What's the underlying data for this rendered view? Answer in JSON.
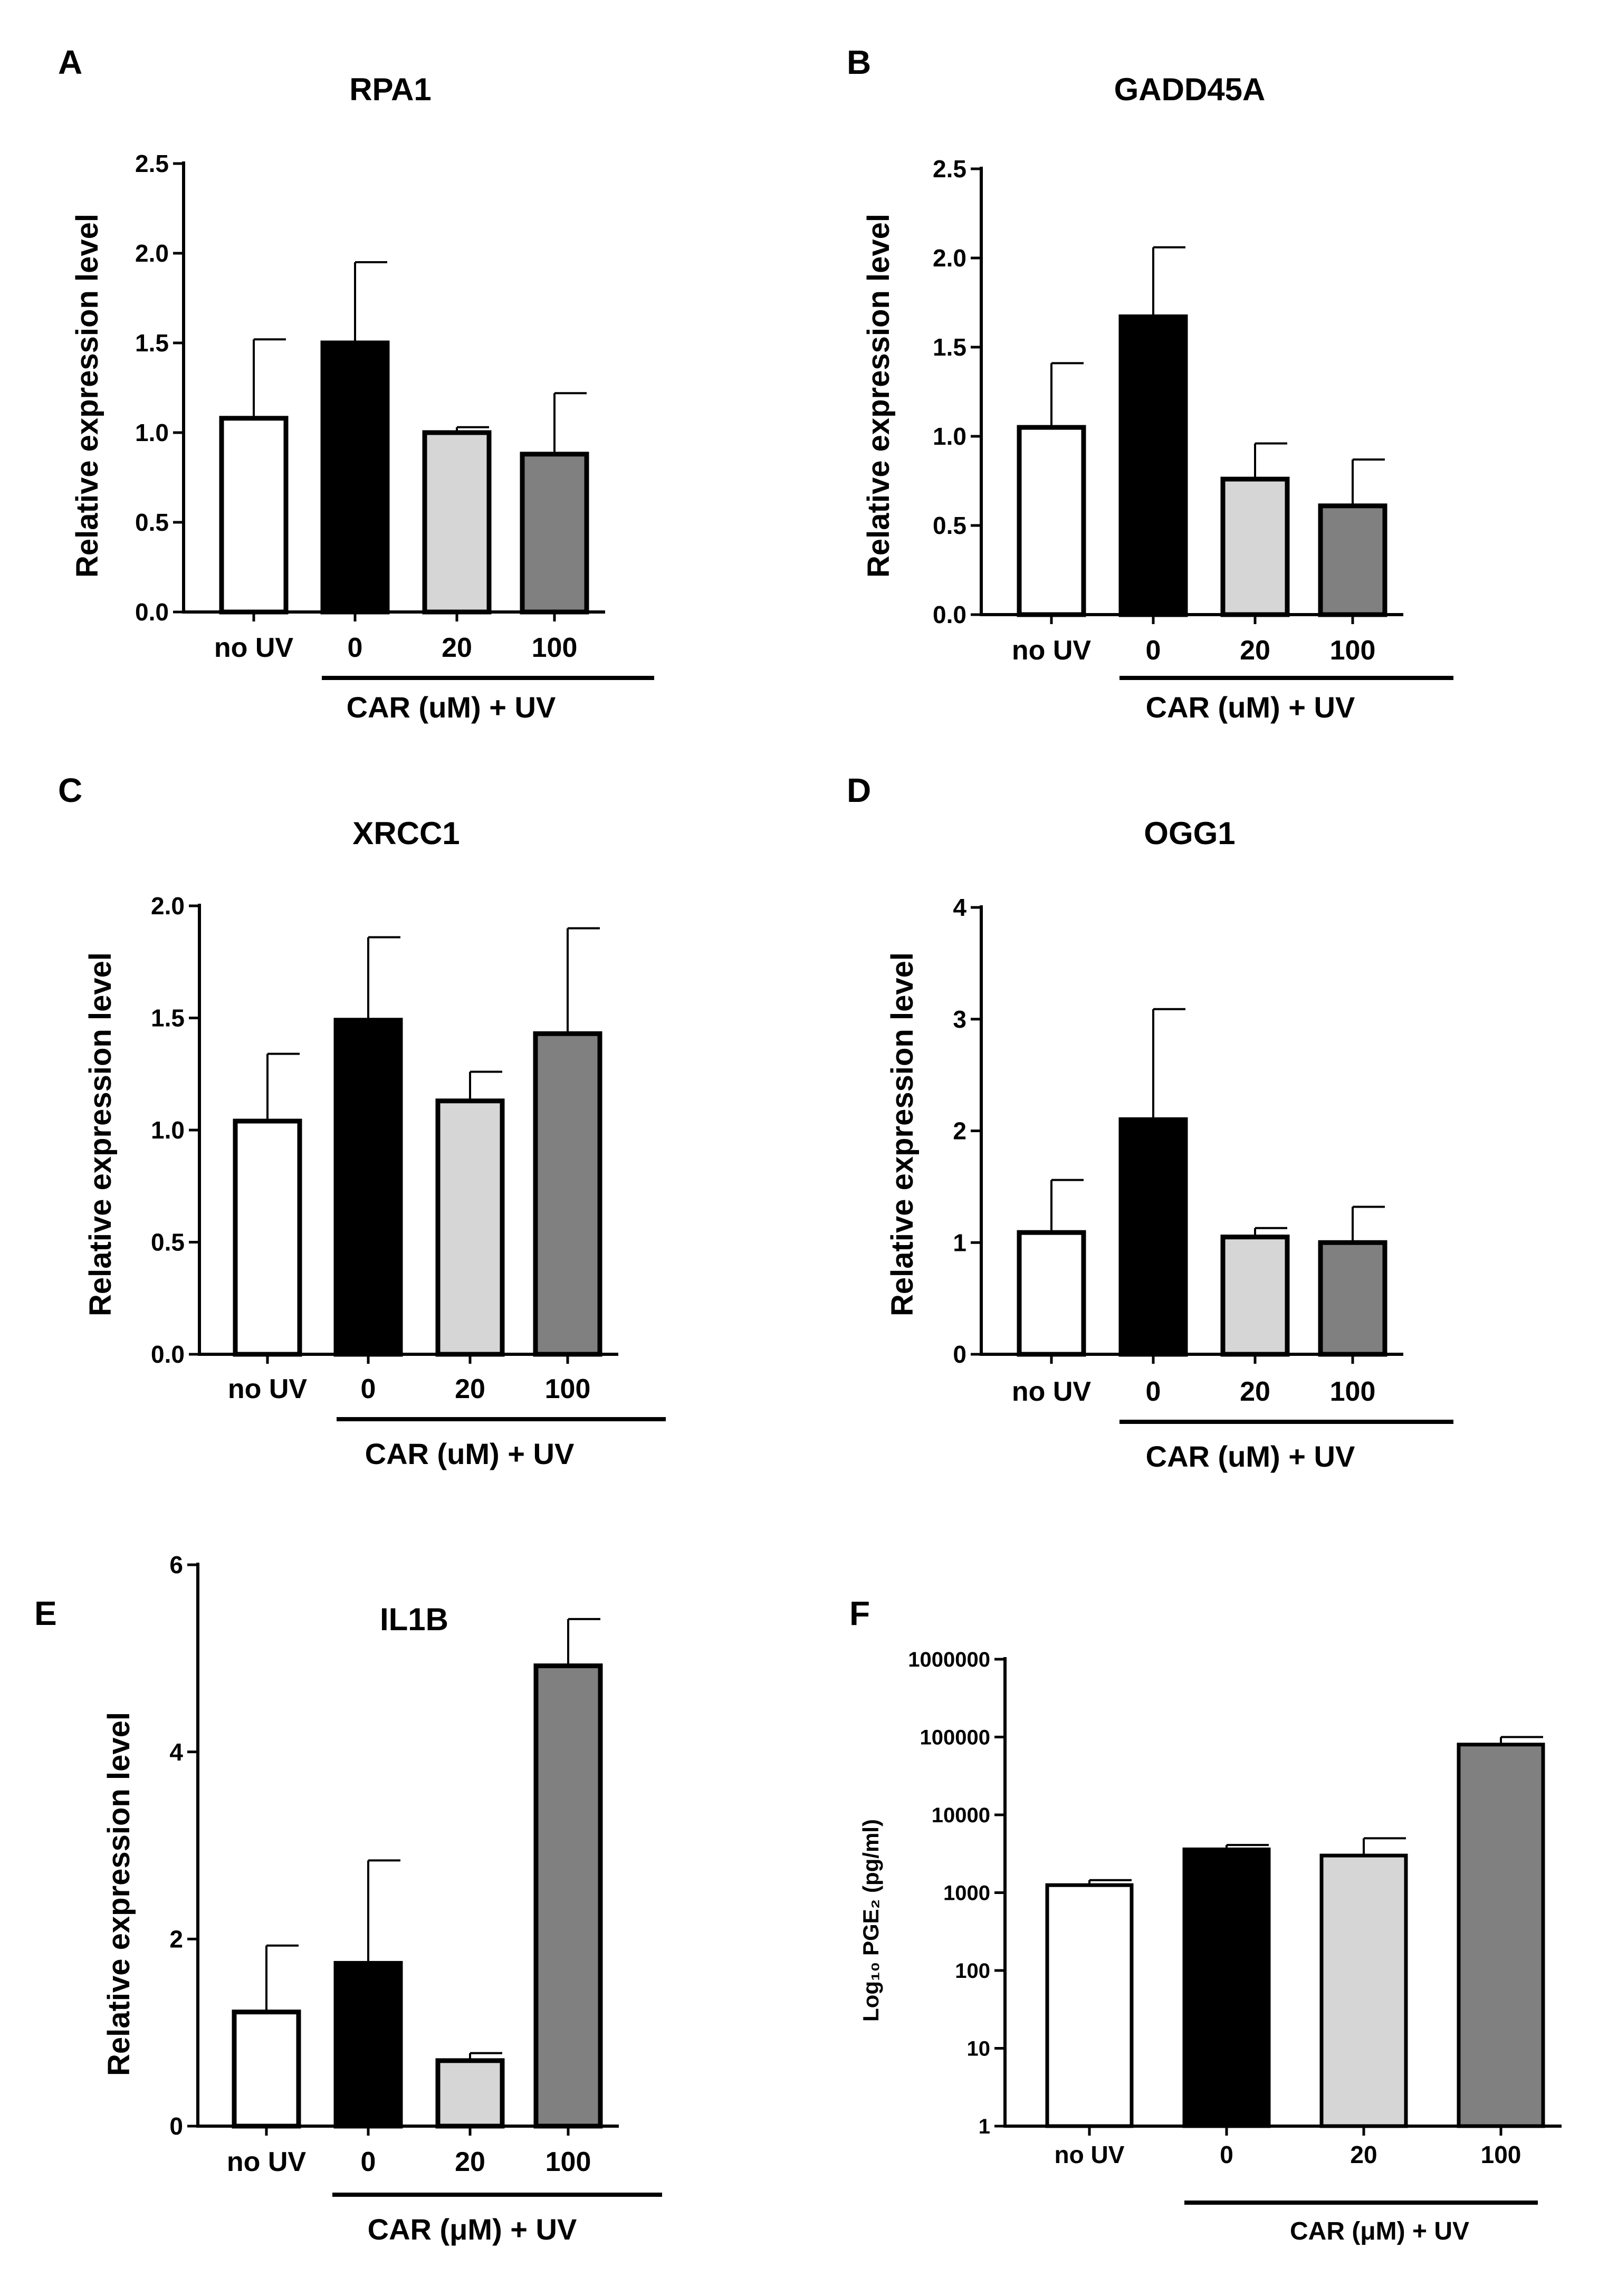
{
  "chart_data": [
    {
      "panel": "A",
      "type": "bar",
      "title": "RPA1",
      "ylabel": "Relative expression level",
      "scale": "linear",
      "ylim": [
        0,
        2.5
      ],
      "yticks": [
        "0.0",
        "0.5",
        "1.0",
        "1.5",
        "2.0",
        "2.5"
      ],
      "ytick_values": [
        0,
        0.5,
        1.0,
        1.5,
        2.0,
        2.5
      ],
      "categories": [
        "no UV",
        "0",
        "20",
        "100"
      ],
      "values": [
        1.08,
        1.5,
        1.0,
        0.88
      ],
      "errors": [
        0.44,
        0.45,
        0.03,
        0.34
      ],
      "group_label": "CAR (uM) + UV",
      "bar_colors": [
        "#ffffff",
        "#000000",
        "#d6d6d6",
        "#808080"
      ]
    },
    {
      "panel": "B",
      "type": "bar",
      "title": "GADD45A",
      "ylabel": "Relative expression level",
      "scale": "linear",
      "ylim": [
        0,
        2.5
      ],
      "yticks": [
        "0.0",
        "0.5",
        "1.0",
        "1.5",
        "2.0",
        "2.5"
      ],
      "ytick_values": [
        0,
        0.5,
        1.0,
        1.5,
        2.0,
        2.5
      ],
      "categories": [
        "no UV",
        "0",
        "20",
        "100"
      ],
      "values": [
        1.05,
        1.67,
        0.76,
        0.61
      ],
      "errors": [
        0.36,
        0.39,
        0.2,
        0.26
      ],
      "group_label": "CAR (uM) + UV",
      "bar_colors": [
        "#ffffff",
        "#000000",
        "#d6d6d6",
        "#808080"
      ]
    },
    {
      "panel": "C",
      "type": "bar",
      "title": "XRCC1",
      "ylabel": "Relative expression level",
      "scale": "linear",
      "ylim": [
        0,
        2.0
      ],
      "yticks": [
        "0.0",
        "0.5",
        "1.0",
        "1.5",
        "2.0"
      ],
      "ytick_values": [
        0,
        0.5,
        1.0,
        1.5,
        2.0
      ],
      "categories": [
        "no UV",
        "0",
        "20",
        "100"
      ],
      "values": [
        1.04,
        1.49,
        1.13,
        1.43
      ],
      "errors": [
        0.3,
        0.37,
        0.13,
        0.47
      ],
      "group_label": "CAR (uM) + UV",
      "bar_colors": [
        "#ffffff",
        "#000000",
        "#d6d6d6",
        "#808080"
      ]
    },
    {
      "panel": "D",
      "type": "bar",
      "title": "OGG1",
      "ylabel": "Relative expression level",
      "scale": "linear",
      "ylim": [
        0,
        4
      ],
      "yticks": [
        "0",
        "1",
        "2",
        "3",
        "4"
      ],
      "ytick_values": [
        0,
        1,
        2,
        3,
        4
      ],
      "categories": [
        "no UV",
        "0",
        "20",
        "100"
      ],
      "values": [
        1.09,
        2.1,
        1.05,
        1.0
      ],
      "errors": [
        0.47,
        0.99,
        0.08,
        0.32
      ],
      "group_label": "CAR (uM) + UV",
      "bar_colors": [
        "#ffffff",
        "#000000",
        "#d6d6d6",
        "#808080"
      ]
    },
    {
      "panel": "E",
      "type": "bar",
      "title": "IL1B",
      "ylabel": "Relative expression level",
      "scale": "linear",
      "ylim": [
        0,
        6
      ],
      "yticks": [
        "0",
        "2",
        "4",
        "6"
      ],
      "ytick_values": [
        0,
        2,
        4,
        6
      ],
      "categories": [
        "no UV",
        "0",
        "20",
        "100"
      ],
      "values": [
        1.22,
        1.74,
        0.7,
        4.92
      ],
      "errors": [
        0.71,
        1.1,
        0.08,
        0.5
      ],
      "group_label": "CAR (μM) + UV",
      "bar_colors": [
        "#ffffff",
        "#000000",
        "#d6d6d6",
        "#808080"
      ]
    },
    {
      "panel": "F",
      "type": "bar",
      "title": "",
      "ylabel": "Log₁₀ PGE₂ (pg/ml)",
      "scale": "log",
      "ylim": [
        1,
        1000000
      ],
      "yticks": [
        "1",
        "10",
        "100",
        "1000",
        "10000",
        "100000",
        "1000000"
      ],
      "ytick_values": [
        1,
        10,
        100,
        1000,
        10000,
        100000,
        1000000
      ],
      "categories": [
        "no UV",
        "0",
        "20",
        "100"
      ],
      "values": [
        1250,
        3600,
        3000,
        80000
      ],
      "error_tops": [
        1450,
        4100,
        5000,
        100000
      ],
      "group_label": "CAR (μM) + UV",
      "bar_colors": [
        "#ffffff",
        "#000000",
        "#d6d6d6",
        "#808080"
      ]
    }
  ]
}
